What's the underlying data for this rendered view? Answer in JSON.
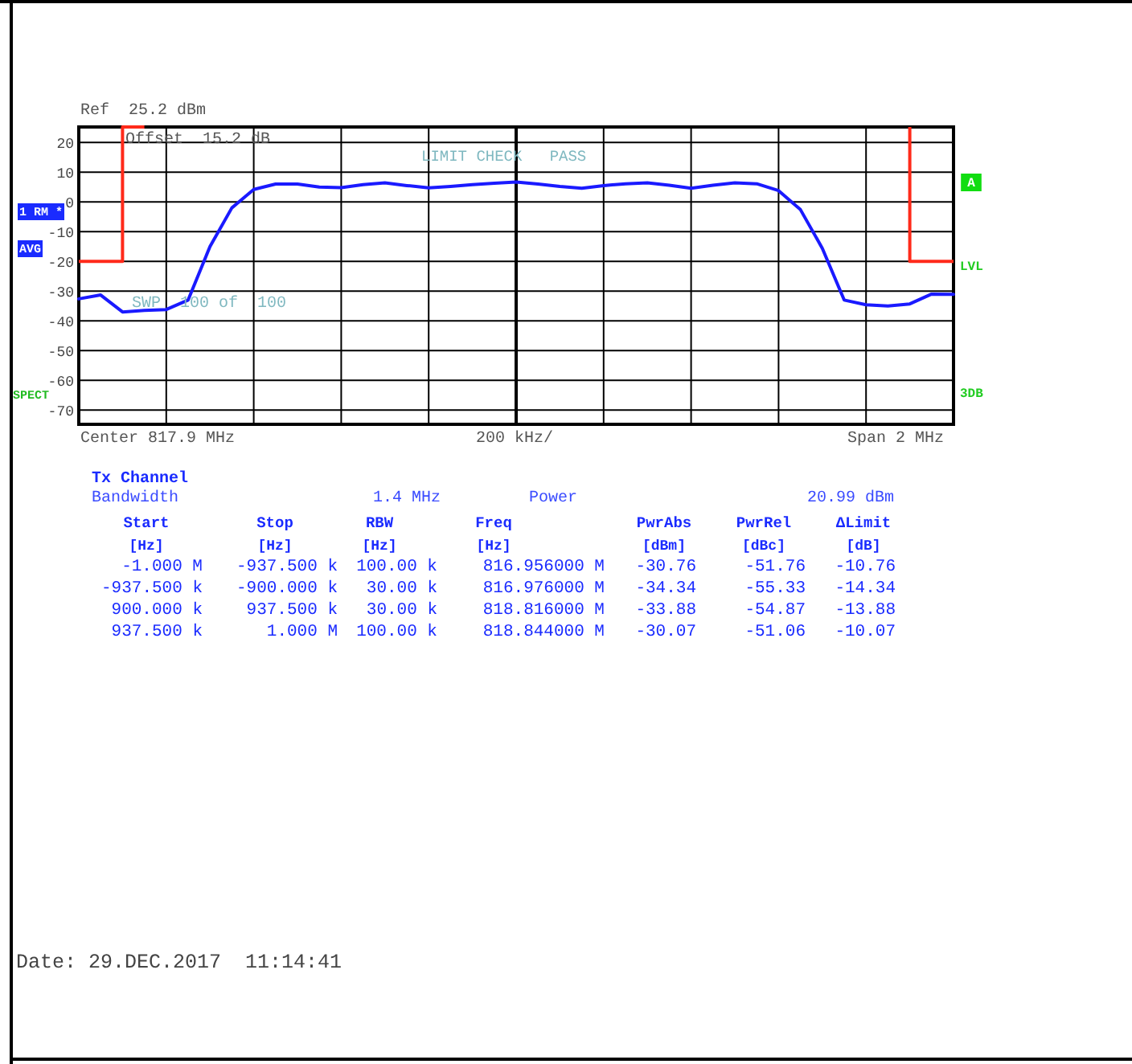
{
  "chart_data": {
    "type": "line",
    "categories": [
      null,
      null,
      null,
      null,
      null,
      null,
      null,
      null,
      null,
      null,
      null,
      null,
      null,
      null,
      null,
      null,
      null,
      null,
      null,
      null,
      null,
      null,
      null,
      null,
      null,
      null,
      null,
      null,
      null,
      null,
      null,
      null,
      null,
      null,
      null,
      null,
      null,
      null,
      null,
      null,
      null
    ],
    "ylim": [
      -74.8,
      25.2
    ],
    "yticks": [
      20,
      10,
      0,
      -10,
      -20,
      -30,
      -40,
      -50,
      -60,
      -70
    ],
    "grid": true,
    "series": [
      {
        "color": "#1a1aff",
        "values": [
          -32.6,
          -31.3,
          -37.0,
          -36.5,
          -36.2,
          -33.0,
          -15.0,
          -2.0,
          4.2,
          6.0,
          6.0,
          5.0,
          4.8,
          5.8,
          6.4,
          5.5,
          4.7,
          5.2,
          5.8,
          6.3,
          6.7,
          6.0,
          5.2,
          4.6,
          5.5,
          6.1,
          6.4,
          5.6,
          4.6,
          5.6,
          6.4,
          6.1,
          3.8,
          -2.6,
          -15.6,
          -33.0,
          -34.6,
          -35.0,
          -34.3,
          -31.0,
          -31.1
        ]
      },
      {
        "type": "step",
        "color": "#ff2a1a",
        "values": [
          -20,
          -20,
          -20,
          25.2,
          null,
          null,
          null,
          null,
          null,
          null,
          null,
          null,
          null,
          null,
          null,
          null,
          null,
          null,
          null,
          null,
          null,
          null,
          null,
          null,
          null,
          null,
          null,
          null,
          null,
          null,
          null,
          null,
          null,
          null,
          null,
          null,
          null,
          null,
          null,
          null,
          null
        ]
      },
      {
        "type": "step",
        "color": "#ff2a1a",
        "values": [
          null,
          null,
          null,
          null,
          null,
          null,
          null,
          null,
          null,
          null,
          null,
          null,
          null,
          null,
          null,
          null,
          null,
          null,
          null,
          null,
          null,
          null,
          null,
          null,
          null,
          null,
          null,
          null,
          null,
          null,
          null,
          null,
          null,
          null,
          null,
          null,
          null,
          null,
          25.2,
          -20,
          -20
        ]
      }
    ],
    "annotations": [
      "Ref  25.2 dBm",
      "Offset  15.2 dB",
      "LIMIT CHECK   PASS",
      "SWP  100 of  100",
      "1 RM *",
      "AVG",
      "SPECT",
      "A",
      "LVL",
      "3DB",
      "Center 817.9 MHz",
      "200 kHz/",
      "Span 2 MHz",
      "Tx Channel",
      "Bandwidth",
      "1.4 MHz",
      "Power",
      "20.99 dBm",
      "Start",
      "Stop",
      "RBW",
      "Freq",
      "PwrAbs",
      "PwrRel",
      "ΔLimit",
      "[Hz]",
      "[Hz]",
      "[Hz]",
      "[Hz]",
      "[dBm]",
      "[dBc]",
      "[dB]",
      "-1.000 M",
      "-937.500 k",
      "100.00 k",
      "816.956000 M",
      "-30.76",
      "-51.76",
      "-10.76",
      "-937.500 k",
      "-900.000 k",
      "30.00 k",
      "816.976000 M",
      "-34.34",
      "-55.33",
      "-14.34",
      "900.000 k",
      "937.500 k",
      "30.00 k",
      "818.816000 M",
      "-33.88",
      "-54.87",
      "-13.88",
      "937.500 k",
      "1.000 M",
      "100.00 k",
      "818.844000 M",
      "-30.07",
      "-51.06",
      "-10.07",
      "Date: 29.DEC.2017  11:14:41"
    ]
  }
}
